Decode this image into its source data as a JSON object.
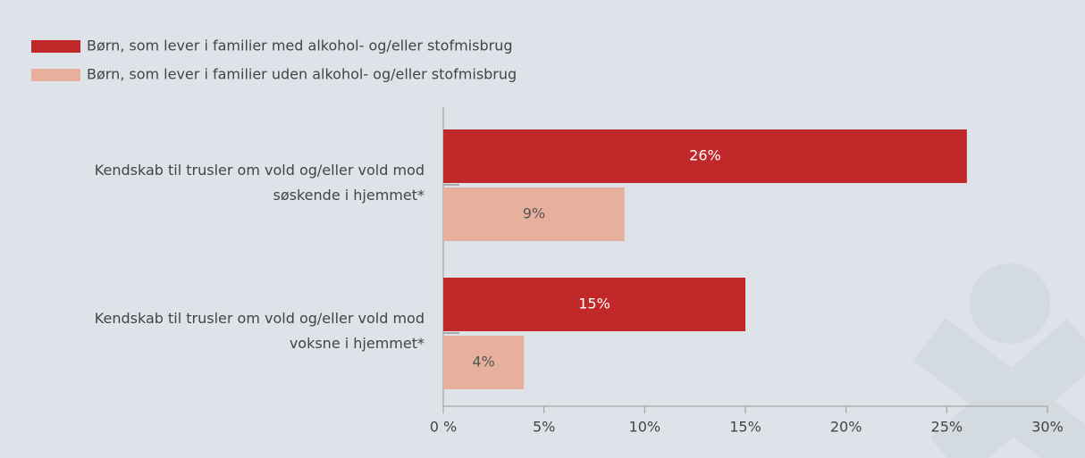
{
  "chart_data": {
    "type": "hbar",
    "categories": [
      "Kendskab til trusler om vold og/eller vold mod søskende i hjemmet*",
      "Kendskab til trusler om vold og/eller vold mod voksne i hjemmet*"
    ],
    "series": [
      {
        "name": "Børn, som lever i familier med alkohol- og/eller stofmisbrug",
        "color": "#c0282a",
        "values": [
          26,
          15
        ],
        "value_labels": [
          "26%",
          "15%"
        ]
      },
      {
        "name": "Børn, som lever i familier uden alkohol- og/eller stofmisbrug",
        "color": "#e6b09c",
        "values": [
          9,
          4
        ],
        "value_labels": [
          "9%",
          "4%"
        ]
      }
    ],
    "xlim": [
      0,
      30
    ],
    "xticks": [
      {
        "value": 0,
        "label": "0 %"
      },
      {
        "value": 5,
        "label": "5%"
      },
      {
        "value": 10,
        "label": "10%"
      },
      {
        "value": 15,
        "label": "15%"
      },
      {
        "value": 20,
        "label": "20%"
      },
      {
        "value": 25,
        "label": "25%"
      },
      {
        "value": 30,
        "label": "30%"
      }
    ],
    "grid": false
  }
}
